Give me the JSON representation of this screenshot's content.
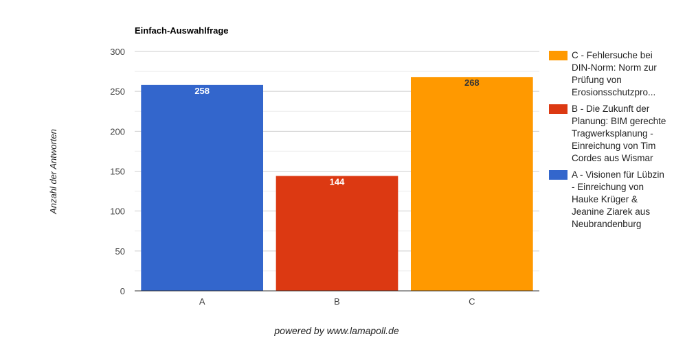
{
  "chart_data": {
    "type": "bar",
    "title": "Einfach-Auswahlfrage",
    "xlabel": "",
    "ylabel": "Anzahl der Antworten",
    "categories": [
      "A",
      "B",
      "C"
    ],
    "values": [
      258,
      144,
      268
    ],
    "colors": [
      "#3366cc",
      "#dc3912",
      "#ff9900"
    ],
    "data_labels": [
      "258",
      "144",
      "268"
    ],
    "ylim": [
      0,
      300
    ],
    "yticks": [
      0,
      50,
      100,
      150,
      200,
      250,
      300
    ],
    "grid": true,
    "legend_position": "right",
    "legend": [
      {
        "label": "C - Fehlersuche bei DIN-Norm: Norm zur Prüfung von Erosionsschutzpro...",
        "color": "#ff9900"
      },
      {
        "label": "B - Die Zukunft der Planung: BIM gerechte Tragwerksplanung - Einreichung von Tim Cordes aus Wismar",
        "color": "#dc3912"
      },
      {
        "label": "A - Visionen für Lübzin - Einreichung von Hauke Krüger & Jeanine Ziarek aus Neubrandenburg",
        "color": "#3366cc"
      }
    ]
  },
  "footer": {
    "credit": "powered by www.lamapoll.de"
  }
}
